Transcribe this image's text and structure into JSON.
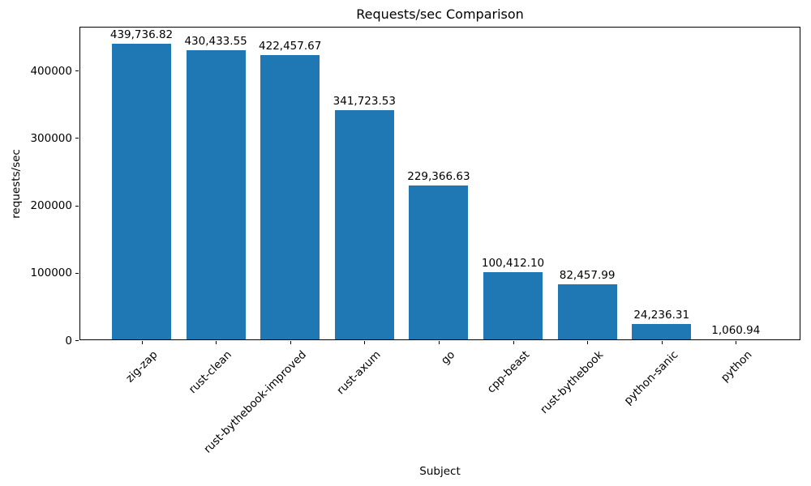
{
  "chart_data": {
    "type": "bar",
    "title": "Requests/sec Comparison",
    "xlabel": "Subject",
    "ylabel": "requests/sec",
    "categories": [
      "zig-zap",
      "rust-clean",
      "rust-bythebook-improved",
      "rust-axum",
      "go",
      "cpp-beast",
      "rust-bythebook",
      "python-sanic",
      "python"
    ],
    "values": [
      439736.82,
      430433.55,
      422457.67,
      341723.53,
      229366.63,
      100412.1,
      82457.99,
      24236.31,
      1060.94
    ],
    "value_labels": [
      "439,736.82",
      "430,433.55",
      "422,457.67",
      "341,723.53",
      "229,366.63",
      "100,412.10",
      "82,457.99",
      "24,236.31",
      "1,060.94"
    ],
    "y_ticks": [
      0,
      100000,
      200000,
      300000,
      400000
    ],
    "ylim": [
      0,
      465000
    ],
    "bar_color": "#1f77b4",
    "grid": false,
    "legend": false
  }
}
